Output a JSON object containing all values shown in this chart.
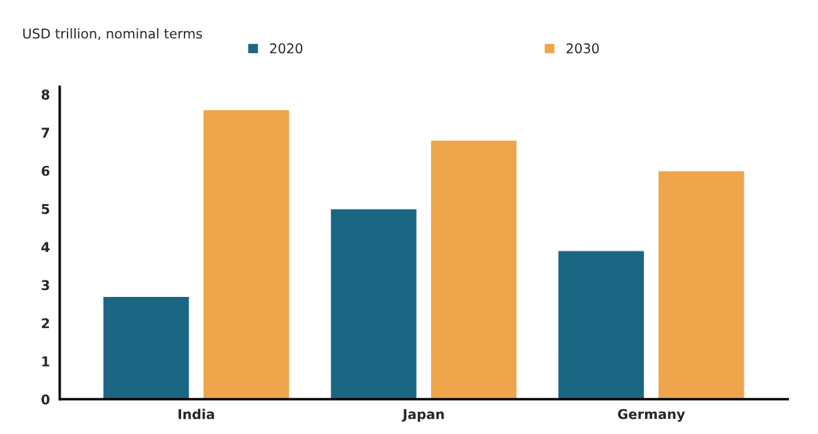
{
  "chart_data": {
    "type": "bar",
    "ylabel": "USD trillion, nominal terms",
    "categories": [
      "India",
      "Japan",
      "Germany"
    ],
    "series": [
      {
        "name": "2020",
        "color": "#1b6682",
        "values": [
          2.7,
          5.0,
          3.9
        ]
      },
      {
        "name": "2030",
        "color": "#eea54b",
        "values": [
          7.6,
          6.8,
          6.0
        ]
      }
    ],
    "ylim": [
      0,
      8.2
    ],
    "yticks": [
      0,
      1,
      2,
      3,
      4,
      5,
      6,
      7,
      8
    ],
    "grid": false,
    "legend": "top"
  }
}
